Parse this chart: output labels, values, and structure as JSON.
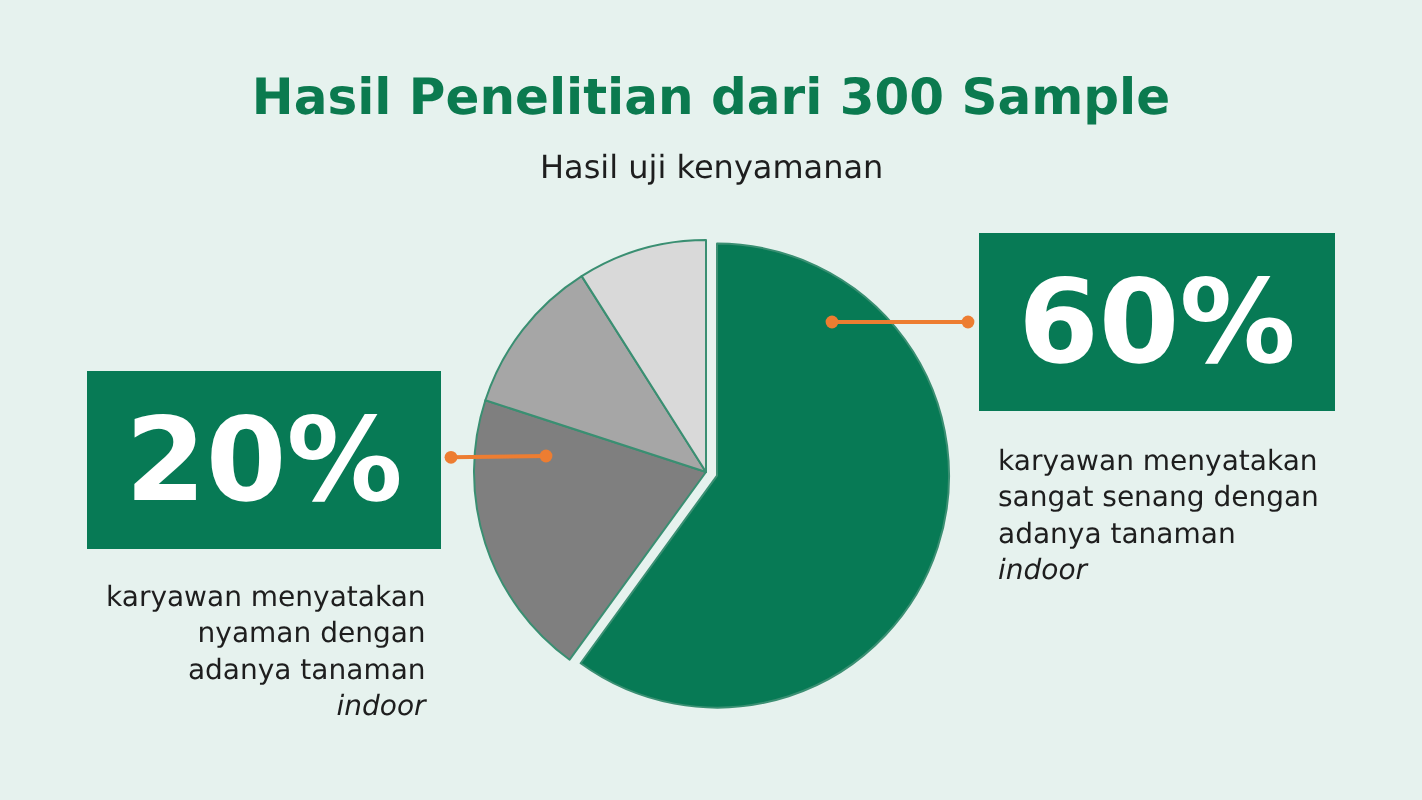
{
  "chart_data": {
    "type": "pie",
    "title": "Hasil Penelitian dari 300 Sample",
    "subtitle": "Hasil uji kenyamanan",
    "categories": [
      "karyawan menyatakan\nsangat senang dengan\nadanya tanaman\nindoor",
      "karyawan menyatakan\nnyaman dengan\nadanya tanaman\nindoor",
      null,
      null
    ],
    "values": [
      60,
      20,
      11,
      9
    ],
    "colors": [
      "#077a55",
      "#7f7f7f",
      "#a6a6a6",
      "#d9d9d9"
    ],
    "value_labels": [
      "60%",
      "20%",
      null,
      null
    ]
  }
}
